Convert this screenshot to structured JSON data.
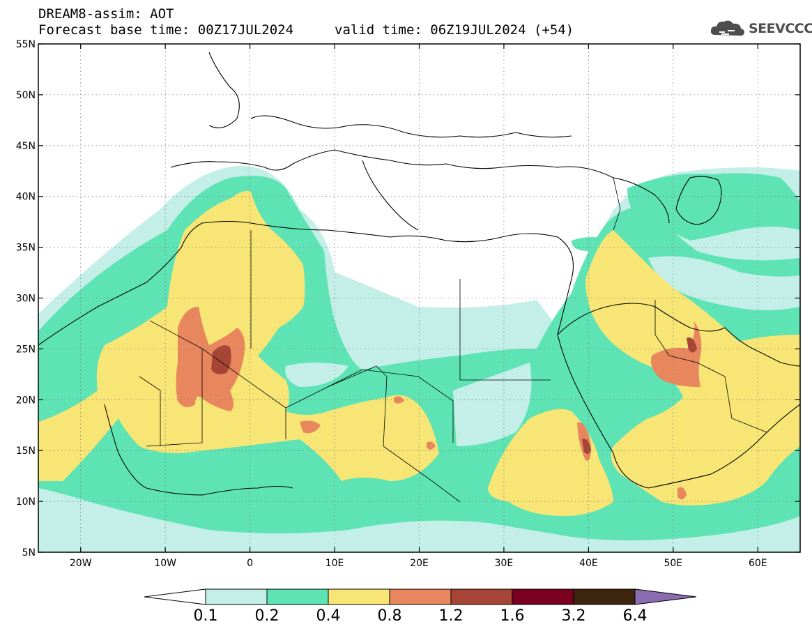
{
  "header": {
    "title_line1": "DREAM8-assim: AOT",
    "title_line2": "Forecast base time: 00Z17JUL2024",
    "valid_time": "valid time: 06Z19JUL2024 (+54)",
    "brand": "SEEVCCC"
  },
  "map": {
    "projection": "lat-lon",
    "lon_range": [
      -25,
      65
    ],
    "lat_range": [
      5,
      55
    ],
    "lat_ticks": [
      "5N",
      "10N",
      "15N",
      "20N",
      "25N",
      "30N",
      "35N",
      "40N",
      "45N",
      "50N",
      "55N"
    ],
    "lon_ticks": [
      "20W",
      "10W",
      "0",
      "10E",
      "20E",
      "30E",
      "40E",
      "50E",
      "60E"
    ]
  },
  "colorbar": {
    "levels": [
      "0.1",
      "0.2",
      "0.4",
      "0.8",
      "1.2",
      "1.6",
      "3.2",
      "6.4"
    ],
    "colors": [
      "#ffffff",
      "#c3efe8",
      "#5ee3b4",
      "#f7e575",
      "#e8865d",
      "#a64535",
      "#7a0022",
      "#3d2510",
      "#8a6cb0"
    ]
  },
  "colors": {
    "aot_0_1_0_2": "#c3efe8",
    "aot_0_2_0_4": "#5ee3b4",
    "aot_0_4_0_8": "#f7e575",
    "aot_0_8_1_2": "#e8865d",
    "aot_1_2_1_6": "#a64535",
    "aot_1_6_3_2": "#7a0022"
  }
}
